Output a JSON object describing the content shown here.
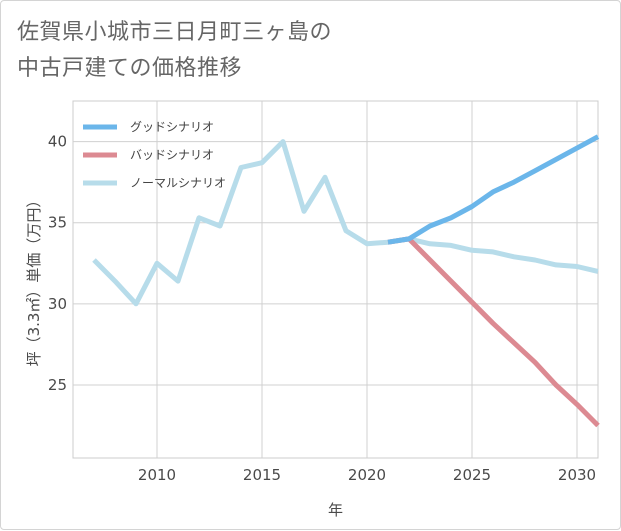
{
  "title": {
    "line1": "佐賀県小城市三日月町三ヶ島の",
    "line2": "中古戸建ての価格推移"
  },
  "chart_data": {
    "type": "line",
    "title": "佐賀県小城市三日月町三ヶ島の中古戸建ての価格推移",
    "xlabel": "年",
    "ylabel": "坪（3.3㎡）単価（万円）",
    "xlim": [
      2006,
      2031
    ],
    "ylim": [
      20.5,
      42.5
    ],
    "xticks": [
      2010,
      2015,
      2020,
      2025,
      2030
    ],
    "yticks": [
      25,
      30,
      35,
      40
    ],
    "grid": true,
    "legend_position": "top-left",
    "series": [
      {
        "name": "グッドシナリオ",
        "color": "#6bb6ea",
        "x": [
          2021,
          2022,
          2023,
          2024,
          2025,
          2026,
          2027,
          2028,
          2029,
          2030,
          2031
        ],
        "y": [
          33.8,
          34.0,
          34.8,
          35.3,
          36.0,
          36.9,
          37.5,
          38.2,
          38.9,
          39.6,
          40.3
        ]
      },
      {
        "name": "バッドシナリオ",
        "color": "#dc8a92",
        "x": [
          2021,
          2022,
          2023,
          2024,
          2025,
          2026,
          2027,
          2028,
          2029,
          2030,
          2031
        ],
        "y": [
          33.8,
          34.0,
          32.7,
          31.4,
          30.1,
          28.8,
          27.6,
          26.4,
          25.0,
          23.8,
          22.5
        ]
      },
      {
        "name": "ノーマルシナリオ",
        "color": "#b7dcea",
        "x": [
          2007,
          2008,
          2009,
          2010,
          2011,
          2012,
          2013,
          2014,
          2015,
          2016,
          2017,
          2018,
          2019,
          2020,
          2021,
          2022,
          2023,
          2024,
          2025,
          2026,
          2027,
          2028,
          2029,
          2030,
          2031
        ],
        "y": [
          32.7,
          31.4,
          30.0,
          32.5,
          31.4,
          35.3,
          34.8,
          38.4,
          38.7,
          40.0,
          35.7,
          37.8,
          34.5,
          33.7,
          33.8,
          34.0,
          33.7,
          33.6,
          33.3,
          33.2,
          32.9,
          32.7,
          32.4,
          32.3,
          32.0
        ]
      }
    ]
  }
}
